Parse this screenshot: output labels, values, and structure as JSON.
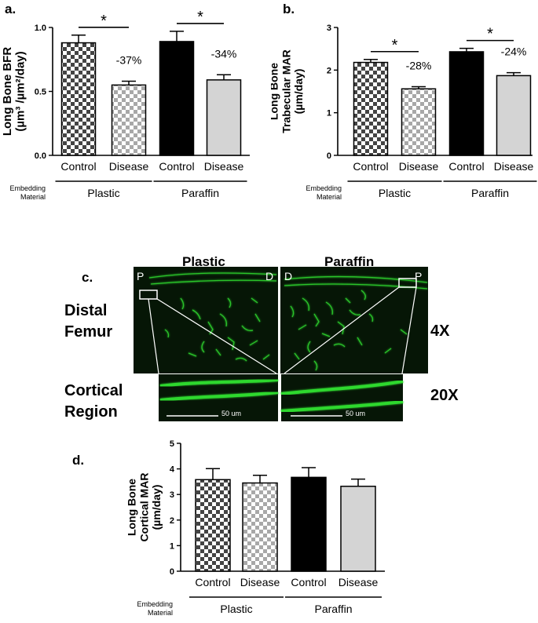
{
  "chart_data": [
    {
      "panel": "a.",
      "type": "bar",
      "categories": [
        "Control",
        "Disease",
        "Control",
        "Disease"
      ],
      "values": [
        0.88,
        0.55,
        0.89,
        0.59
      ],
      "errors": [
        0.06,
        0.03,
        0.08,
        0.04
      ],
      "ylabel": [
        "Long Bone BFR",
        "(µm³ /µm²/day)"
      ],
      "ylim": [
        0,
        1.0
      ],
      "yticks": [
        "0.0",
        "0.5",
        "1.0"
      ],
      "groups": [
        {
          "label": "Plastic"
        },
        {
          "label": "Paraffin"
        }
      ],
      "embedding_label": [
        "Embedding",
        "Material"
      ],
      "annotations": [
        {
          "bar": 1,
          "text": "-37%"
        },
        {
          "bar": 3,
          "text": "-34%"
        }
      ],
      "significance": [
        {
          "text": "*"
        },
        {
          "text": "*"
        }
      ]
    },
    {
      "panel": "b.",
      "type": "bar",
      "categories": [
        "Control",
        "Disease",
        "Control",
        "Disease"
      ],
      "values": [
        2.18,
        1.56,
        2.43,
        1.87
      ],
      "errors": [
        0.07,
        0.05,
        0.08,
        0.07
      ],
      "ylabel": [
        "Long Bone",
        "Trabecular MAR",
        "(µm/day)"
      ],
      "ylim": [
        0,
        3
      ],
      "yticks": [
        "0",
        "1",
        "2",
        "3"
      ],
      "groups": [
        {
          "label": "Plastic"
        },
        {
          "label": "Paraffin"
        }
      ],
      "embedding_label": [
        "Embedding",
        "Material"
      ],
      "annotations": [
        {
          "bar": 1,
          "text": "-28%"
        },
        {
          "bar": 3,
          "text": "-24%"
        }
      ],
      "significance": [
        {
          "text": "*"
        },
        {
          "text": "*"
        }
      ]
    },
    {
      "panel": "d.",
      "type": "bar",
      "categories": [
        "Control",
        "Disease",
        "Control",
        "Disease"
      ],
      "values": [
        3.58,
        3.45,
        3.67,
        3.32
      ],
      "errors": [
        0.43,
        0.3,
        0.38,
        0.28
      ],
      "ylabel": [
        "Long Bone",
        "Cortical MAR",
        "(µm/day)"
      ],
      "ylim": [
        0,
        5
      ],
      "yticks": [
        "0",
        "1",
        "2",
        "3",
        "4",
        "5"
      ],
      "groups": [
        {
          "label": "Plastic"
        },
        {
          "label": "Paraffin"
        }
      ],
      "embedding_label": [
        "Embedding",
        "Material"
      ],
      "annotations": [],
      "significance": []
    }
  ],
  "bar_styles": [
    "dark-checker",
    "light-checker",
    "solid-black",
    "solid-light-gray"
  ],
  "colors": {
    "dark_fill": "#000000",
    "light_fill": "#d4d4d4",
    "checker_dark": "#444444",
    "checker_light": "#a8a8a8",
    "micrograph_bg": "#061606",
    "fluorescence": "#2ed82e"
  },
  "panel_c": {
    "letter": "c.",
    "titles": {
      "plastic": "Plastic",
      "paraffin": "Paraffin"
    },
    "corner_labels": {
      "plastic_left": "P",
      "plastic_right": "D",
      "paraffin_left": "D",
      "paraffin_right": "P"
    },
    "rows": {
      "distal": [
        "Distal",
        "Femur"
      ],
      "cortical": [
        "Cortical",
        "Region"
      ]
    },
    "magnifications": {
      "low": "4X",
      "high": "20X"
    },
    "scalebars": {
      "plastic": "50 um",
      "paraffin": "50 um"
    }
  }
}
